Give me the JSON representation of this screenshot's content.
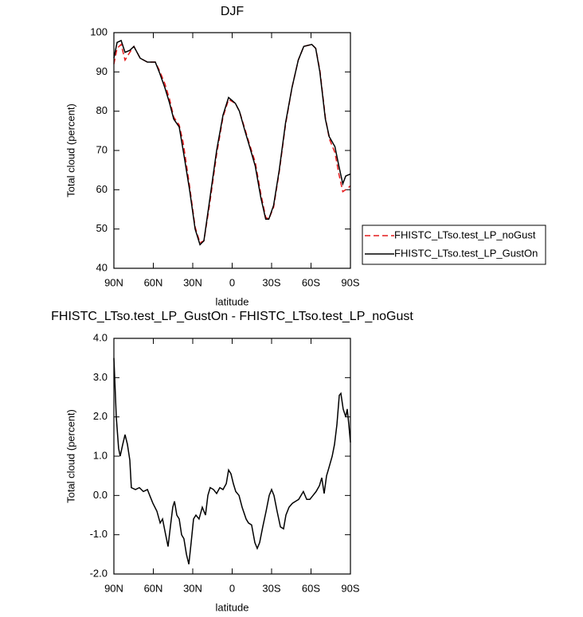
{
  "chart_data": [
    {
      "type": "line",
      "title": "DJF",
      "xlabel": "latitude",
      "ylabel": "Total cloud (percent)",
      "x": [
        90,
        87.6,
        84.5,
        81.5,
        77.9,
        74.8,
        70,
        64.5,
        58.5,
        55.5,
        51.2,
        47.6,
        44.5,
        40.3,
        37.3,
        32.4,
        28.2,
        24.5,
        21.5,
        17.3,
        11.8,
        7,
        2.7,
        -2.4,
        -5.5,
        -9.7,
        -13.3,
        -17.6,
        -21.8,
        -25.5,
        -27.9,
        -31.5,
        -35.8,
        -40.6,
        -45.5,
        -50.3,
        -54.5,
        -60.6,
        -63.6,
        -66.7,
        -70.9,
        -73.9,
        -78.2,
        -81.2,
        -84.2,
        -86.4,
        -90
      ],
      "series": [
        {
          "name": "FHISTC_LTso.test_LP_noGust",
          "color": "#e41a1c",
          "line_style": "dashed",
          "values": [
            92,
            96,
            97,
            93,
            95,
            96.5,
            93.5,
            92.5,
            92.5,
            90.5,
            87,
            83,
            78.5,
            76.5,
            72,
            61,
            50.5,
            46.5,
            47,
            56,
            69,
            78.5,
            83,
            82,
            80,
            75.5,
            71.5,
            67,
            59,
            53,
            52.5,
            55.5,
            64.5,
            76.5,
            86,
            93,
            96.5,
            97,
            96,
            90.5,
            78.5,
            73,
            69.5,
            64,
            59.5,
            60,
            61
          ]
        },
        {
          "name": "FHISTC_LTso.test_LP_GustOn",
          "color": "#000000",
          "line_style": "solid",
          "values": [
            93.5,
            97.5,
            98,
            95,
            95.5,
            96.5,
            93.5,
            92.5,
            92.5,
            90,
            86,
            82,
            78,
            76,
            70,
            60,
            50,
            46,
            47,
            57,
            70,
            79,
            83.5,
            82,
            80,
            75,
            71,
            66,
            58,
            52.5,
            52.5,
            56,
            65,
            77,
            86,
            93,
            96.5,
            97,
            96,
            90,
            78,
            73.5,
            71,
            66,
            61.5,
            63.5,
            64
          ]
        }
      ],
      "xlim": [
        90,
        -90
      ],
      "xticks": [
        {
          "value": 90,
          "label": "90N"
        },
        {
          "value": 60,
          "label": "60N"
        },
        {
          "value": 30,
          "label": "30N"
        },
        0,
        {
          "value": -30,
          "label": "30S"
        },
        {
          "value": -60,
          "label": "60S"
        },
        {
          "value": -90,
          "label": "90S"
        }
      ],
      "ylim": [
        40,
        100
      ],
      "yticks": [
        40,
        50,
        60,
        70,
        80,
        90,
        100
      ],
      "legend": "right"
    },
    {
      "type": "line",
      "title": "FHISTC_LTso.test_LP_GustOn - FHISTC_LTso.test_LP_noGust",
      "xlabel": "latitude",
      "ylabel": "Total cloud (percent)",
      "x": [
        90,
        88.2,
        86.4,
        85.2,
        83.3,
        81.5,
        79.7,
        77.9,
        76.7,
        73.6,
        70.6,
        67.6,
        64.5,
        62.7,
        60.3,
        57.3,
        54.8,
        53.0,
        51.2,
        48.8,
        47.0,
        45.2,
        43.9,
        42.1,
        40.3,
        38.5,
        36.7,
        34.8,
        33.0,
        31.2,
        29.4,
        27.6,
        25.2,
        22.7,
        20.3,
        18.5,
        16.7,
        14.2,
        11.8,
        9.4,
        7.0,
        4.5,
        2.7,
        0.9,
        -0.9,
        -2.7,
        -5.2,
        -7.6,
        -10.6,
        -12.4,
        -14.8,
        -17.3,
        -19.1,
        -20.9,
        -23.3,
        -25.8,
        -28.2,
        -30.0,
        -31.8,
        -34.2,
        -36.7,
        -39.1,
        -40.9,
        -43.3,
        -45.8,
        -48.2,
        -50.6,
        -52.4,
        -54.2,
        -56.7,
        -59.1,
        -61.5,
        -63.9,
        -66.4,
        -68.2,
        -70.0,
        -71.8,
        -73.6,
        -76.1,
        -77.9,
        -79.7,
        -81.5,
        -82.7,
        -84.5,
        -86.4,
        -87.6,
        -88.8,
        -90
      ],
      "values": [
        3.5,
        2.0,
        1.2,
        1.0,
        1.3,
        1.55,
        1.3,
        0.9,
        0.2,
        0.15,
        0.2,
        0.1,
        0.15,
        0.0,
        -0.2,
        -0.4,
        -0.7,
        -0.6,
        -0.9,
        -1.3,
        -0.8,
        -0.3,
        -0.15,
        -0.5,
        -0.6,
        -1.0,
        -1.1,
        -1.5,
        -1.75,
        -1.2,
        -0.6,
        -0.5,
        -0.6,
        -0.3,
        -0.5,
        0.0,
        0.2,
        0.15,
        0.05,
        0.2,
        0.15,
        0.3,
        0.65,
        0.55,
        0.3,
        0.1,
        0.0,
        -0.3,
        -0.6,
        -0.7,
        -0.75,
        -1.2,
        -1.35,
        -1.2,
        -0.8,
        -0.4,
        0.0,
        0.15,
        0.0,
        -0.4,
        -0.8,
        -0.85,
        -0.5,
        -0.3,
        -0.2,
        -0.15,
        -0.1,
        0.0,
        0.1,
        -0.1,
        -0.1,
        0.0,
        0.1,
        0.25,
        0.45,
        0.05,
        0.5,
        0.7,
        1.0,
        1.3,
        1.8,
        2.55,
        2.6,
        2.2,
        2.0,
        2.2,
        1.8,
        1.35
      ],
      "color": "#000000",
      "xlim": [
        90,
        -90
      ],
      "xticks": [
        {
          "value": 90,
          "label": "90N"
        },
        {
          "value": 60,
          "label": "60N"
        },
        {
          "value": 30,
          "label": "30N"
        },
        0,
        {
          "value": -30,
          "label": "30S"
        },
        {
          "value": -60,
          "label": "60S"
        },
        {
          "value": -90,
          "label": "90S"
        }
      ],
      "ylim": [
        -2,
        4
      ],
      "yticks": [
        {
          "value": -2,
          "label": "-2.0"
        },
        {
          "value": -1,
          "label": "-1.0"
        },
        {
          "value": 0,
          "label": "0.0"
        },
        {
          "value": 1,
          "label": "1.0"
        },
        {
          "value": 2,
          "label": "2.0"
        },
        {
          "value": 3,
          "label": "3.0"
        },
        {
          "value": 4,
          "label": "4.0"
        }
      ]
    }
  ]
}
